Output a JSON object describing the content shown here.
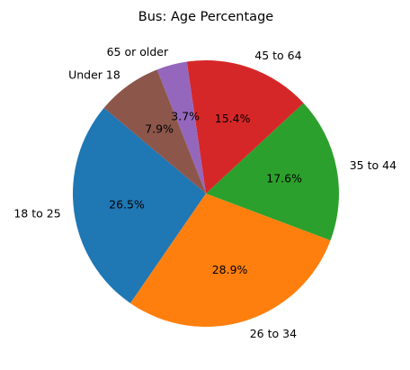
{
  "chart_data": {
    "type": "pie",
    "title": "Bus: Age Percentage",
    "start_angle_deg": 140,
    "direction": "counterclockwise",
    "slices": [
      {
        "label": "18 to 25",
        "value": 26.5,
        "pct_label": "26.5%",
        "color": "#1f77b4"
      },
      {
        "label": "26 to 34",
        "value": 28.9,
        "pct_label": "28.9%",
        "color": "#ff7f0e"
      },
      {
        "label": "35 to 44",
        "value": 17.6,
        "pct_label": "17.6%",
        "color": "#2ca02c"
      },
      {
        "label": "45 to 64",
        "value": 15.4,
        "pct_label": "15.4%",
        "color": "#d62728"
      },
      {
        "label": "65 or older",
        "value": 3.7,
        "pct_label": "3.7%",
        "color": "#9467bd"
      },
      {
        "label": "Under 18",
        "value": 7.9,
        "pct_label": "7.9%",
        "color": "#8c564b"
      }
    ]
  }
}
